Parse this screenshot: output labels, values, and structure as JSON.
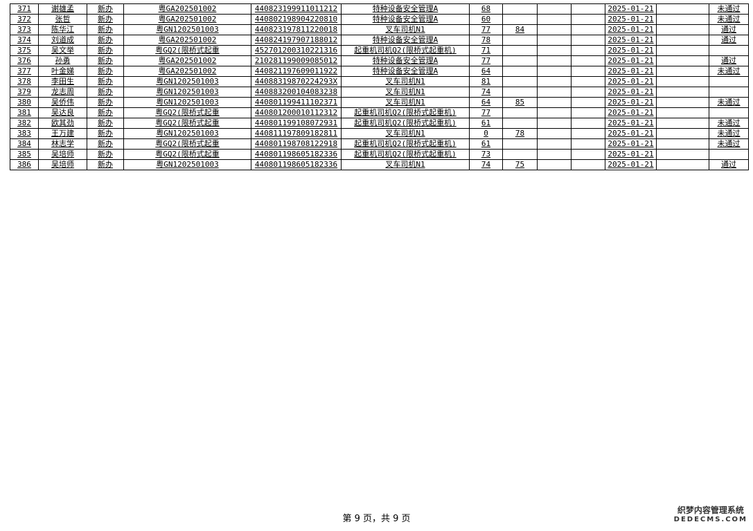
{
  "rows": [
    [
      "371",
      "谢雄孟",
      "新办",
      "粤GA202501002",
      "440823199911011212",
      "特种设备安全管理A",
      "68",
      "",
      "",
      "",
      "2025-01-21",
      "",
      "未通过"
    ],
    [
      "372",
      "张哲",
      "新办",
      "粤GA202501002",
      "440802198904220810",
      "特种设备安全管理A",
      "60",
      "",
      "",
      "",
      "2025-01-21",
      "",
      "未通过"
    ],
    [
      "373",
      "陈华江",
      "新办",
      "粤GN1202501003",
      "440823197811220018",
      "叉车司机N1",
      "77",
      "84",
      "",
      "",
      "2025-01-21",
      "",
      "通过"
    ],
    [
      "374",
      "刘道成",
      "新办",
      "粤GA202501002",
      "440824197907188012",
      "特种设备安全管理A",
      "78",
      "",
      "",
      "",
      "2025-01-21",
      "",
      "通过"
    ],
    [
      "375",
      "吴文举",
      "新办",
      "粤GQ2(限桥式起重",
      "452701200310221316",
      "起重机司机Q2(限桥式起重机)",
      "71",
      "",
      "",
      "",
      "2025-01-21",
      "",
      ""
    ],
    [
      "376",
      "孙勇",
      "新办",
      "粤GA202501002",
      "210281199009085012",
      "特种设备安全管理A",
      "77",
      "",
      "",
      "",
      "2025-01-21",
      "",
      "通过"
    ],
    [
      "377",
      "叶金娣",
      "新办",
      "粤GA202501002",
      "440821197609011922",
      "特种设备安全管理A",
      "64",
      "",
      "",
      "",
      "2025-01-21",
      "",
      "未通过"
    ],
    [
      "378",
      "李田生",
      "新办",
      "粤GN1202501003",
      "44088319870224293X",
      "叉车司机N1",
      "81",
      "",
      "",
      "",
      "2025-01-21",
      "",
      ""
    ],
    [
      "379",
      "龙志周",
      "新办",
      "粤GN1202501003",
      "440883200104083238",
      "叉车司机N1",
      "74",
      "",
      "",
      "",
      "2025-01-21",
      "",
      ""
    ],
    [
      "380",
      "吴侨伟",
      "新办",
      "粤GN1202501003",
      "440801199411102371",
      "叉车司机N1",
      "64",
      "85",
      "",
      "",
      "2025-01-21",
      "",
      "未通过"
    ],
    [
      "381",
      "吴达良",
      "新办",
      "粤GQ2(限桥式起重",
      "440801200010112312",
      "起重机司机Q2(限桥式起重机)",
      "77",
      "",
      "",
      "",
      "2025-01-21",
      "",
      ""
    ],
    [
      "382",
      "欧其劲",
      "新办",
      "粤GQ2(限桥式起重",
      "440801199108072931",
      "起重机司机Q2(限桥式起重机)",
      "61",
      "",
      "",
      "",
      "2025-01-21",
      "",
      "未通过"
    ],
    [
      "383",
      "王万建",
      "新办",
      "粤GN1202501003",
      "440811197809182811",
      "叉车司机N1",
      "0",
      "78",
      "",
      "",
      "2025-01-21",
      "",
      "未通过"
    ],
    [
      "384",
      "林志学",
      "新办",
      "粤GQ2(限桥式起重",
      "440801198708122918",
      "起重机司机Q2(限桥式起重机)",
      "61",
      "",
      "",
      "",
      "2025-01-21",
      "",
      "未通过"
    ],
    [
      "385",
      "吴培师",
      "新办",
      "粤GQ2(限桥式起重",
      "440801198605182336",
      "起重机司机Q2(限桥式起重机)",
      "73",
      "",
      "",
      "",
      "2025-01-21",
      "",
      ""
    ],
    [
      "386",
      "吴培师",
      "新办",
      "粤GN1202501003",
      "440801198605182336",
      "叉车司机N1",
      "74",
      "75",
      "",
      "",
      "2025-01-21",
      "",
      "通过"
    ]
  ],
  "footer": {
    "page_text": "第 9 页，共 9 页"
  },
  "watermark": {
    "line1": "织梦内容管理系统",
    "line2": "DEDECMS.COM"
  }
}
